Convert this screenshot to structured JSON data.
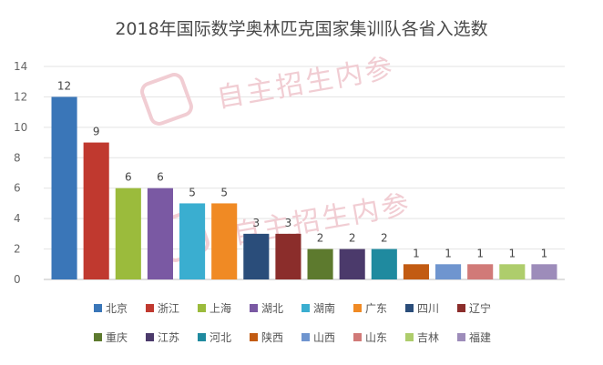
{
  "chart_data": {
    "type": "bar",
    "title": "2018年国际数学奥林匹克国家集训队各省入选数",
    "categories": [
      "北京",
      "浙江",
      "上海",
      "湖北",
      "湖南",
      "广东",
      "四川",
      "辽宁",
      "重庆",
      "江苏",
      "河北",
      "陕西",
      "山西",
      "山东",
      "吉林",
      "福建"
    ],
    "values": [
      12,
      9,
      6,
      6,
      5,
      5,
      3,
      3,
      2,
      2,
      2,
      1,
      1,
      1,
      1,
      1
    ],
    "colors": [
      "#3a76b8",
      "#c0392f",
      "#9bbb3c",
      "#7a59a3",
      "#3aaed0",
      "#f08a24",
      "#2a4d7a",
      "#8b2d2b",
      "#5d7a2e",
      "#4b3a6b",
      "#1f8a9f",
      "#c25b12",
      "#6f95cf",
      "#d17a78",
      "#aecd6c",
      "#9d8cba"
    ],
    "ylim": [
      0,
      14
    ],
    "yticks": [
      0,
      2,
      4,
      6,
      8,
      10,
      12,
      14
    ],
    "grid": true,
    "legend_position": "bottom",
    "xlabel": "",
    "ylabel": ""
  },
  "watermark": {
    "text": "自主招生内参"
  }
}
